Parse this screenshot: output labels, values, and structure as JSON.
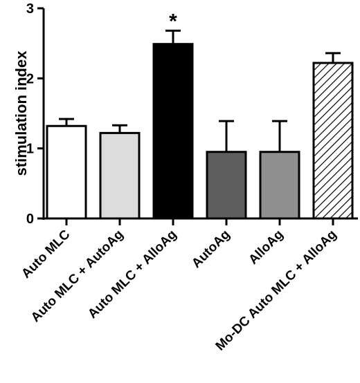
{
  "chart_data": {
    "type": "bar",
    "title": "",
    "xlabel": "",
    "ylabel": "stimulation index",
    "ylim": [
      0,
      3
    ],
    "yticks": [
      "0",
      "1",
      "2",
      "3"
    ],
    "grid": false,
    "categories": [
      "Auto MLC",
      "Auto MLC + AutoAg",
      "Auto MLC + AlloAg",
      "AutoAg",
      "AlloAg",
      "Mo-DC Auto MLC + AlloAg"
    ],
    "values": [
      1.32,
      1.22,
      2.49,
      0.95,
      0.95,
      2.22
    ],
    "errors": [
      0.1,
      0.11,
      0.19,
      0.44,
      0.44,
      0.14
    ],
    "fills": [
      {
        "color": "#ffffff",
        "pattern": "solid"
      },
      {
        "color": "#dcdcdc",
        "pattern": "solid"
      },
      {
        "color": "#000000",
        "pattern": "solid"
      },
      {
        "color": "#5e5e5e",
        "pattern": "solid"
      },
      {
        "color": "#8f8f8f",
        "pattern": "solid"
      },
      {
        "color": "#ffffff",
        "pattern": "diagonal-hatch"
      }
    ],
    "annotations": [
      {
        "text": "*",
        "category_index": 2
      }
    ]
  }
}
